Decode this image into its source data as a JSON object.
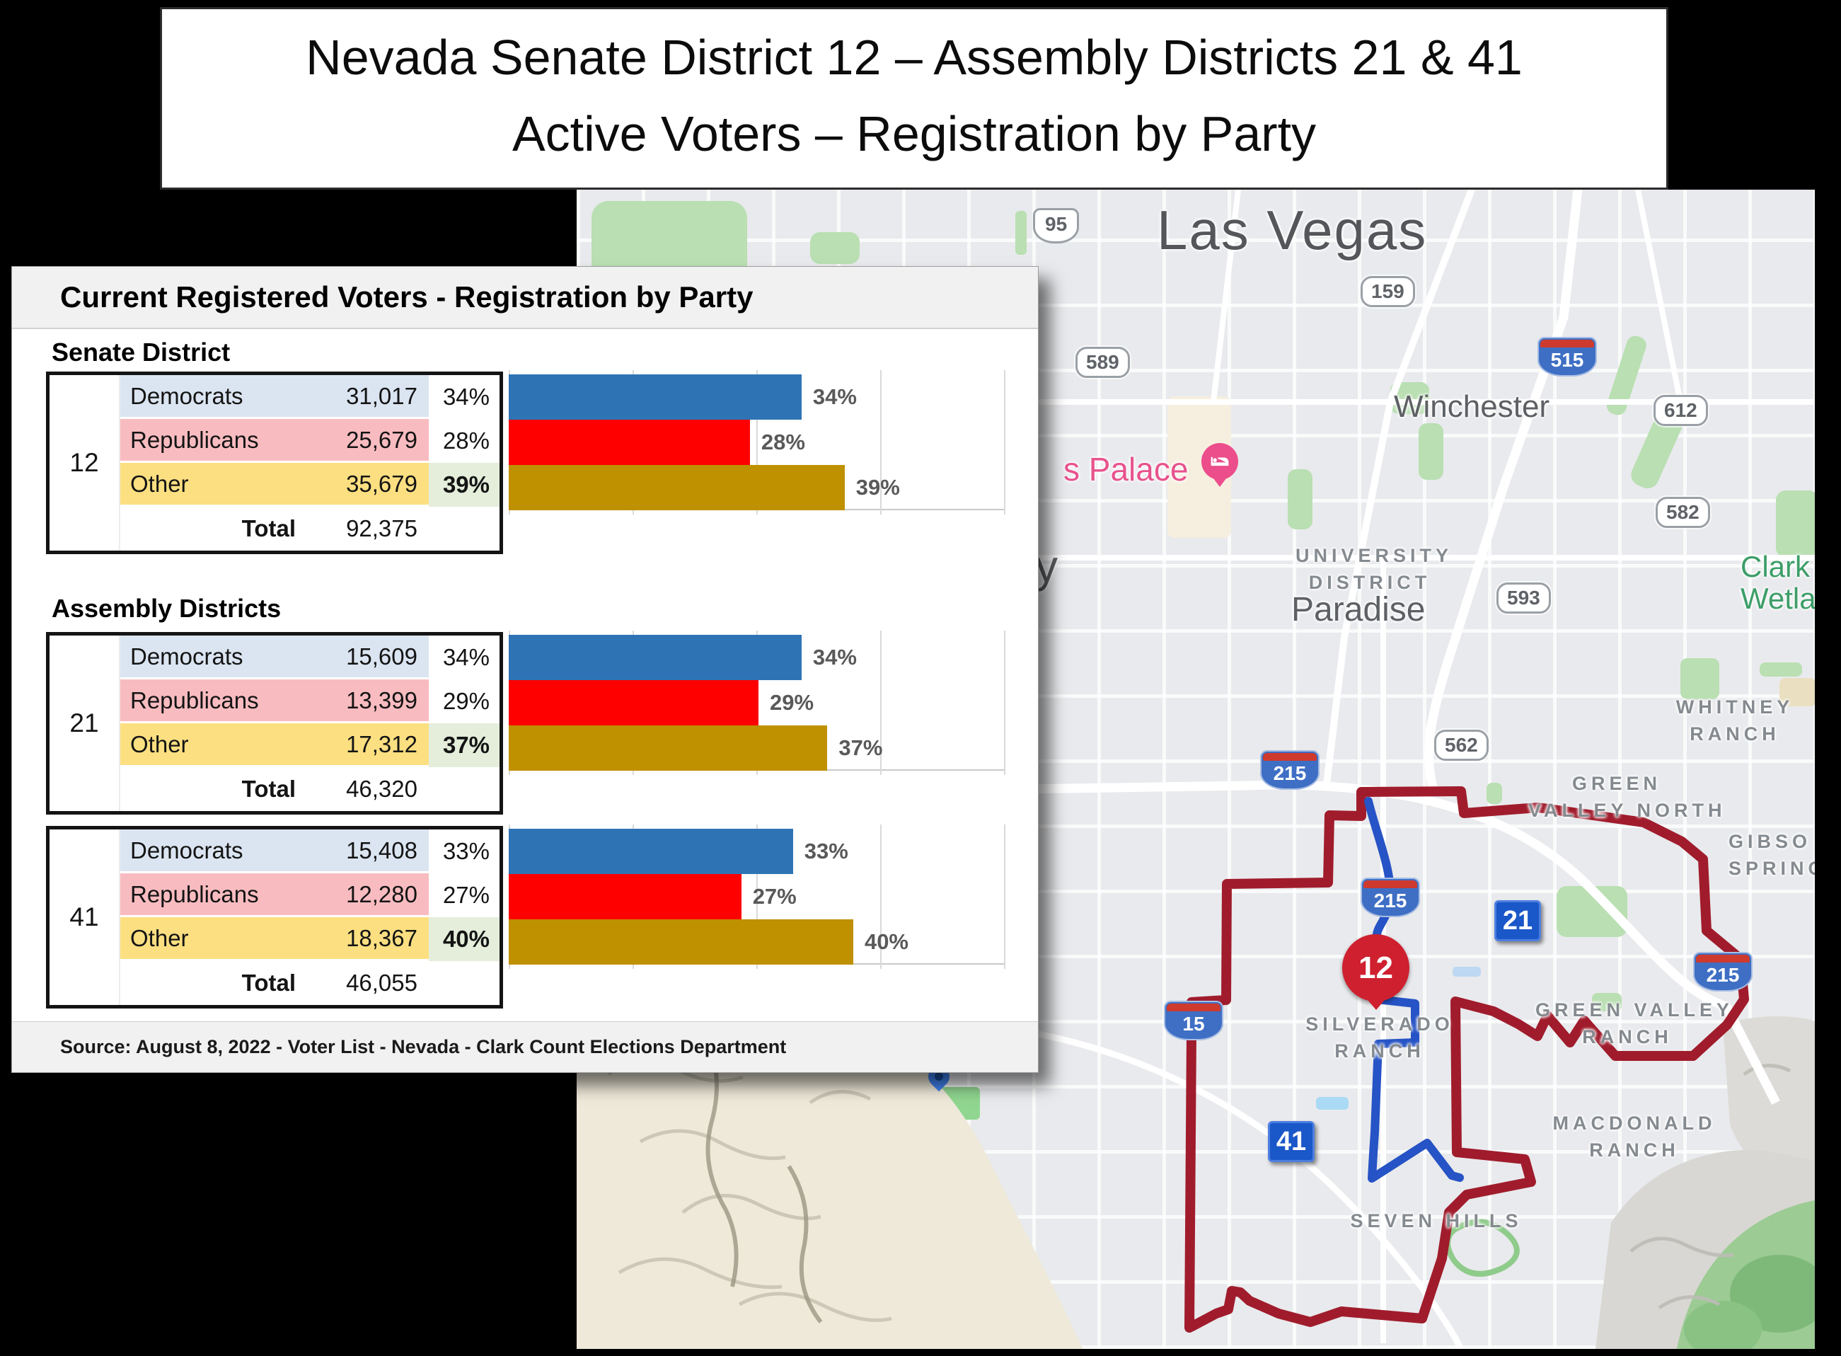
{
  "title": {
    "line1": "Nevada Senate District 12 – Assembly Districts 21 & 41",
    "line2": "Active Voters – Registration by Party"
  },
  "panel": {
    "header": "Current Registered Voters - Registration by Party",
    "senate_section_label": "Senate District",
    "assembly_section_label": "Assembly Districts",
    "source": "Source: August 8, 2022 - Voter List - Nevada - Clark Count Elections Department",
    "tables": [
      {
        "district": "12",
        "rows": [
          {
            "party": "Democrats",
            "value": "31,017",
            "pct": "34%"
          },
          {
            "party": "Republicans",
            "value": "25,679",
            "pct": "28%"
          },
          {
            "party": "Other",
            "value": "35,679",
            "pct": "39%"
          }
        ],
        "total_label": "Total",
        "total_value": "92,375"
      },
      {
        "district": "21",
        "rows": [
          {
            "party": "Democrats",
            "value": "15,609",
            "pct": "34%"
          },
          {
            "party": "Republicans",
            "value": "13,399",
            "pct": "29%"
          },
          {
            "party": "Other",
            "value": "17,312",
            "pct": "37%"
          }
        ],
        "total_label": "Total",
        "total_value": "46,320"
      },
      {
        "district": "41",
        "rows": [
          {
            "party": "Democrats",
            "value": "15,408",
            "pct": "33%"
          },
          {
            "party": "Republicans",
            "value": "12,280",
            "pct": "27%"
          },
          {
            "party": "Other",
            "value": "18,367",
            "pct": "40%"
          }
        ],
        "total_label": "Total",
        "total_value": "46,055"
      }
    ]
  },
  "chart_data": [
    {
      "type": "bar",
      "orientation": "horizontal",
      "title": "Senate District 12",
      "categories": [
        "Democrats",
        "Republicans",
        "Other"
      ],
      "values": [
        34,
        28,
        39
      ],
      "labels": [
        "34%",
        "28%",
        "39%"
      ],
      "colors": [
        "#2E74B5",
        "#FE0000",
        "#BF9000"
      ],
      "xlim": [
        0,
        57.5
      ],
      "grid": true,
      "legend": "none"
    },
    {
      "type": "bar",
      "orientation": "horizontal",
      "title": "Assembly District 21",
      "categories": [
        "Democrats",
        "Republicans",
        "Other"
      ],
      "values": [
        34,
        29,
        37
      ],
      "labels": [
        "34%",
        "29%",
        "37%"
      ],
      "colors": [
        "#2E74B5",
        "#FE0000",
        "#BF9000"
      ],
      "xlim": [
        0,
        57.5
      ],
      "grid": true,
      "legend": "none"
    },
    {
      "type": "bar",
      "orientation": "horizontal",
      "title": "Assembly District 41",
      "categories": [
        "Democrats",
        "Republicans",
        "Other"
      ],
      "values": [
        33,
        27,
        40
      ],
      "labels": [
        "33%",
        "27%",
        "40%"
      ],
      "colors": [
        "#2E74B5",
        "#FE0000",
        "#BF9000"
      ],
      "xlim": [
        0,
        57.5
      ],
      "grid": true,
      "legend": "none"
    }
  ],
  "map": {
    "city": "Las Vegas",
    "winchester": "Winchester",
    "paradise": "Paradise",
    "palace": "s Palace",
    "partial_letter": "y",
    "university": {
      "line1": "UNIVERSITY",
      "line2": "DISTRICT"
    },
    "whitney": {
      "line1": "WHITNEY",
      "line2": "RANCH"
    },
    "green_valley_north": {
      "line1": "GREEN",
      "line2": "VALLEY NORTH"
    },
    "gibson_springs": {
      "line1": "GIBSO",
      "line2": "SPRING"
    },
    "clark_wetlands": {
      "line1": "Clark",
      "line2": "Wetla"
    },
    "green_valley_ranch": {
      "line1": "GREEN VALLEY",
      "line2": "RANCH"
    },
    "silverado_ranch": {
      "line1": "SILVERADO",
      "line2": "RANCH"
    },
    "macdonald_ranch": {
      "line1": "MACDONALD",
      "line2": "RANCH"
    },
    "seven_hills": "SEVEN HILLS",
    "shields": {
      "us95": "95",
      "r159": "159",
      "i515": "515",
      "r589": "589",
      "r612": "612",
      "r582": "582",
      "r593": "593",
      "r562": "562",
      "i215a": "215",
      "i215b": "215",
      "i215c": "215",
      "i15": "15"
    },
    "markers": {
      "senate": "12",
      "assembly21": "21",
      "assembly41": "41"
    },
    "colors": {
      "senate_boundary": "#A01C2C",
      "assembly_boundary": "#2653C5",
      "badge_blue": "#1A57C8",
      "marker_red": "#CF2030",
      "poi_pink": "#EC4D8B"
    }
  }
}
